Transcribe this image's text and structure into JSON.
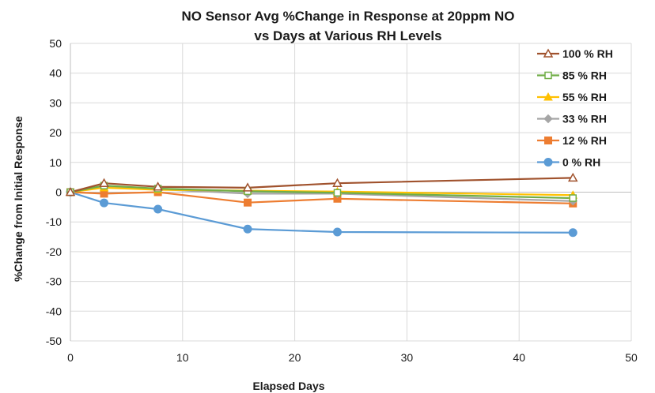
{
  "chart_data": {
    "type": "line",
    "title_lines": [
      "NO   Sensor Avg %Change in Response at 20ppm NO",
      "vs Days at Various RH Levels"
    ],
    "xlabel": "Elapsed Days",
    "ylabel": "%Change  from Initial Response",
    "xlim": [
      0,
      50
    ],
    "ylim": [
      -50,
      50
    ],
    "x_ticks": [
      "0",
      "10",
      "20",
      "30",
      "40",
      "50"
    ],
    "y_ticks": [
      "50",
      "40",
      "30",
      "20",
      "10",
      "0",
      "-10",
      "-20",
      "-30",
      "-40",
      "-50"
    ],
    "grid": true,
    "legend_position": "top-right",
    "x": [
      0,
      3,
      7.8,
      15.8,
      23.8,
      44.8
    ],
    "series": [
      {
        "name": "100 % RH",
        "color": "#a0522d",
        "marker": "open-triangle",
        "values": [
          0,
          3.0,
          1.8,
          1.5,
          3.0,
          4.8
        ]
      },
      {
        "name": "85 % RH",
        "color": "#70ad47",
        "marker": "open-square",
        "values": [
          0,
          2.2,
          1.2,
          0.3,
          -0.2,
          -2.0
        ]
      },
      {
        "name": "55 % RH",
        "color": "#ffc000",
        "marker": "filled-triangle",
        "values": [
          0,
          1.5,
          0.8,
          0.5,
          0.2,
          -1.0
        ]
      },
      {
        "name": "33 % RH",
        "color": "#a5a5a5",
        "marker": "filled-diamond",
        "values": [
          0,
          1.8,
          1.0,
          -0.5,
          -0.5,
          -3.0
        ]
      },
      {
        "name": "12 % RH",
        "color": "#ed7d31",
        "marker": "filled-square",
        "values": [
          0,
          -0.5,
          0,
          -3.5,
          -2.2,
          -3.8
        ]
      },
      {
        "name": "0 % RH",
        "color": "#5b9bd5",
        "marker": "filled-circle",
        "values": [
          0,
          -3.6,
          -5.7,
          -12.4,
          -13.4,
          -13.6
        ]
      }
    ]
  }
}
